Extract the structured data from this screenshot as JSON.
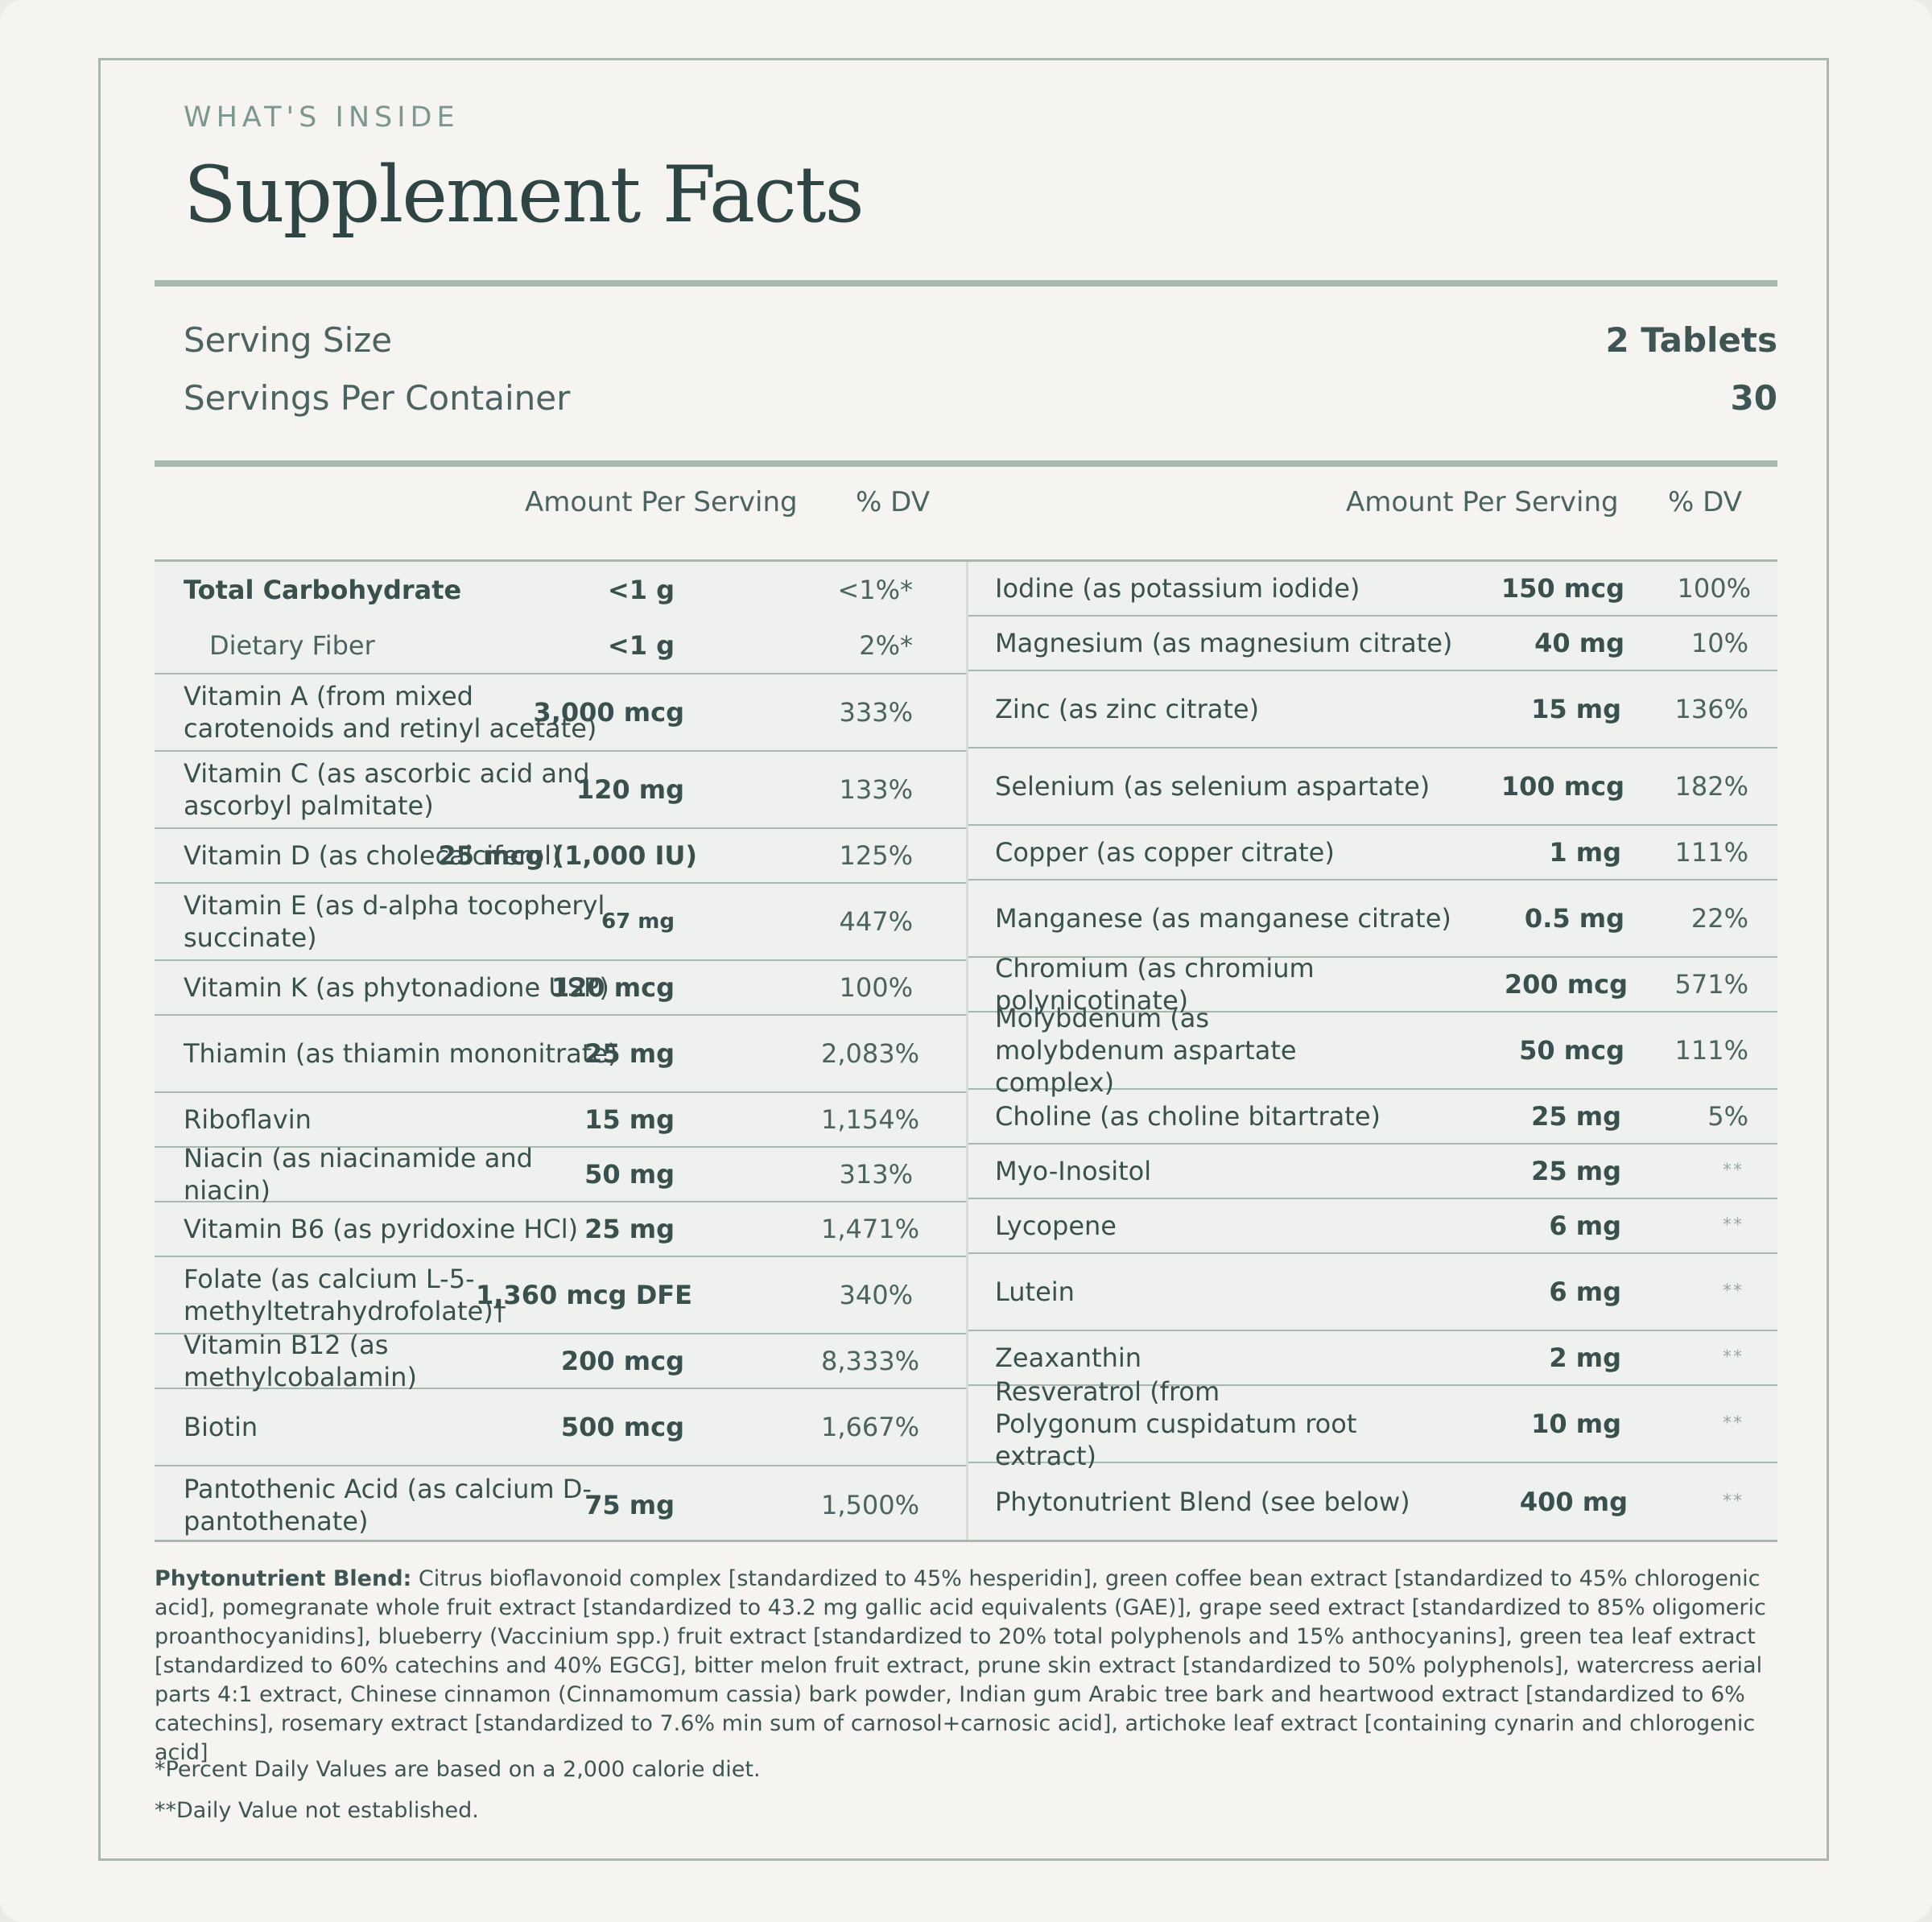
{
  "header": {
    "eyebrow": "WHAT'S INSIDE",
    "title": "Supplement Facts"
  },
  "serving": {
    "size_label": "Serving Size",
    "size_value": "2 Tablets",
    "per_container_label": "Servings Per Container",
    "per_container_value": "30"
  },
  "columns": {
    "amount": "Amount Per Serving",
    "dv": "% DV"
  },
  "left_rows": [
    {
      "name": "Total Carbohydrate",
      "amount": "<1 g",
      "dv": "<1%*"
    },
    {
      "name": "Dietary Fiber",
      "amount": "<1 g",
      "dv": "2%*"
    },
    {
      "name": "Vitamin A (from mixed carotenoids and retinyl acetate)",
      "amount": "3,000 mcg",
      "dv": "333%"
    },
    {
      "name": "Vitamin C (as ascorbic acid and ascorbyl palmitate)",
      "amount": "120 mg",
      "dv": "133%"
    },
    {
      "name": "Vitamin D (as cholecalciferol)",
      "amount": "25 mcg (1,000 IU)",
      "dv": "125%"
    },
    {
      "name": "Vitamin E (as d-alpha tocopheryl succinate)",
      "amount": "67 mg",
      "dv": "447%"
    },
    {
      "name": "Vitamin K (as phytonadione USP)",
      "amount": "120 mcg",
      "dv": "100%"
    },
    {
      "name": "Thiamin (as thiamin mononitrate)",
      "amount": "25 mg",
      "dv": "2,083%"
    },
    {
      "name": "Riboflavin",
      "amount": "15 mg",
      "dv": "1,154%"
    },
    {
      "name": "Niacin (as niacinamide and niacin)",
      "amount": "50 mg",
      "dv": "313%"
    },
    {
      "name": "Vitamin B6 (as pyridoxine HCl)",
      "amount": "25 mg",
      "dv": "1,471%"
    },
    {
      "name": "Folate (as calcium L-5-methyltetrahydrofolate)†",
      "amount": "1,360 mcg DFE",
      "dv": "340%"
    },
    {
      "name": "Vitamin B12 (as methylcobalamin)",
      "amount": "200 mcg",
      "dv": "8,333%"
    },
    {
      "name": "Biotin",
      "amount": "500 mcg",
      "dv": "1,667%"
    },
    {
      "name": "Pantothenic Acid (as calcium D-pantothenate)",
      "amount": "75 mg",
      "dv": "1,500%"
    }
  ],
  "right_rows": [
    {
      "name": "Iodine (as potassium iodide)",
      "amount": "150 mcg",
      "dv": "100%"
    },
    {
      "name": "Magnesium (as magnesium citrate)",
      "amount": "40 mg",
      "dv": "10%"
    },
    {
      "name": "Zinc (as zinc citrate)",
      "amount": "15 mg",
      "dv": "136%"
    },
    {
      "name": "Selenium (as selenium aspartate)",
      "amount": "100 mcg",
      "dv": "182%"
    },
    {
      "name": "Copper (as copper citrate)",
      "amount": "1 mg",
      "dv": "111%"
    },
    {
      "name": "Manganese (as manganese citrate)",
      "amount": "0.5 mg",
      "dv": "22%"
    },
    {
      "name": "Chromium (as chromium polynicotinate)",
      "amount": "200 mcg",
      "dv": "571%"
    },
    {
      "name": "Molybdenum (as molybdenum aspartate complex)",
      "amount": "50 mcg",
      "dv": "111%"
    },
    {
      "name": "Choline (as choline bitartrate)",
      "amount": "25 mg",
      "dv": "5%"
    },
    {
      "name": "Myo-Inositol",
      "amount": "25 mg",
      "dv": "**"
    },
    {
      "name": "Lycopene",
      "amount": "6 mg",
      "dv": "**"
    },
    {
      "name": "Lutein",
      "amount": "6 mg",
      "dv": "**"
    },
    {
      "name": "Zeaxanthin",
      "amount": "2 mg",
      "dv": "**"
    },
    {
      "name": "Resveratrol (from Polygonum cuspidatum root extract)",
      "amount": "10 mg",
      "dv": "**"
    },
    {
      "name": "Phytonutrient Blend (see below)",
      "amount": "400 mg",
      "dv": "**"
    }
  ],
  "blend": {
    "label": "Phytonutrient Blend:",
    "text": " Citrus bioflavonoid complex [standardized to 45% hesperidin], green coffee bean extract [standardized to 45% chlorogenic acid], pomegranate whole fruit extract [standardized to 43.2 mg gallic acid equivalents (GAE)], grape seed extract [standardized to 85% oligomeric proanthocyanidins], blueberry (Vaccinium spp.) fruit extract [standardized to 20% total polyphenols and 15% anthocyanins], green tea leaf extract [standardized to 60% catechins and 40% EGCG], bitter melon fruit extract, prune skin extract [standardized to 50% polyphenols], watercress aerial parts 4:1 extract, Chinese cinnamon (Cinnamomum cassia) bark powder, Indian gum Arabic tree bark and heartwood extract [standardized to 6% catechins], rosemary extract [standardized to 7.6% min sum of carnosol+carnosic acid], artichoke leaf extract [containing cynarin and chlorogenic acid]"
  },
  "footnotes": {
    "dv_note": "*Percent Daily Values are based on a 2,000 calorie diet.",
    "not_established": "**Daily Value not established."
  },
  "colors": {
    "rule": "#a9b8af",
    "text": "#2f4544",
    "accent": "#7d978e"
  }
}
